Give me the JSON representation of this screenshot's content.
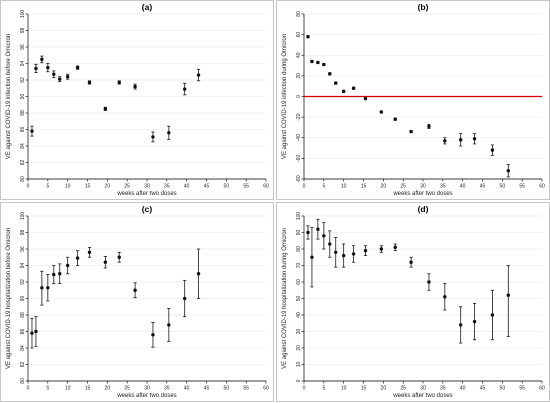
{
  "chart_data": [
    {
      "type": "scatter",
      "title": "(a)",
      "xlabel": "weeks after two doses",
      "ylabel": "VE against COVID-19 infection before Omicron",
      "xlim": [
        0,
        60
      ],
      "ylim": [
        80,
        100
      ],
      "xticks": [
        "0",
        "5",
        "10",
        "15",
        "20",
        "25",
        "30",
        "35",
        "40",
        "45",
        "50",
        "55",
        "60"
      ],
      "yticks": [
        "80",
        "82",
        "84",
        "86",
        "88",
        "90",
        "92",
        "94",
        "96",
        "98",
        "100"
      ],
      "grid": true,
      "series": [
        {
          "x": [
            1,
            2,
            3.5,
            5,
            6.5,
            8,
            10,
            12.5,
            15.5,
            19.5,
            23,
            27,
            31.5,
            35.5,
            39.5,
            43
          ],
          "y": [
            85.8,
            93.4,
            94.5,
            93.5,
            92.7,
            92.1,
            92.4,
            93.5,
            91.7,
            88.5,
            91.7,
            91.2,
            85.1,
            85.6,
            90.9,
            92.6
          ],
          "lower": [
            85.2,
            92.9,
            94.1,
            93.0,
            92.3,
            91.8,
            92.1,
            93.3,
            91.5,
            88.3,
            91.5,
            90.9,
            84.5,
            84.8,
            90.2,
            91.9
          ],
          "upper": [
            86.4,
            93.9,
            94.9,
            94.0,
            93.1,
            92.4,
            92.7,
            93.7,
            91.9,
            88.7,
            91.9,
            91.5,
            85.7,
            86.4,
            91.6,
            93.3
          ]
        }
      ]
    },
    {
      "type": "scatter",
      "title": "(b)",
      "xlabel": "weeks after two doses",
      "ylabel": "VE against COVID-19 infection during Omicron",
      "xlim": [
        0,
        60
      ],
      "ylim": [
        -80,
        80
      ],
      "xticks": [
        "0",
        "5",
        "10",
        "15",
        "20",
        "25",
        "30",
        "35",
        "40",
        "45",
        "50",
        "55",
        "60"
      ],
      "yticks": [
        "-80",
        "-60",
        "-40",
        "-20",
        "0",
        "20",
        "40",
        "60",
        "80"
      ],
      "reference_line": 0,
      "grid": true,
      "series": [
        {
          "x": [
            1,
            2,
            3.5,
            5,
            6.5,
            8,
            10,
            12.5,
            15.5,
            19.5,
            23,
            27,
            31.5,
            35.5,
            39.5,
            43,
            47.5,
            51.5
          ],
          "y": [
            58,
            34,
            33,
            31,
            22,
            13,
            5,
            8,
            -2,
            -15,
            -22,
            -34,
            -29,
            -43,
            -42,
            -41,
            -52,
            -72
          ],
          "lower": [
            57,
            33,
            32,
            30,
            21,
            12,
            4,
            7,
            -3,
            -16,
            -23,
            -35,
            -31,
            -46,
            -48,
            -46,
            -57,
            -78
          ],
          "upper": [
            59,
            35,
            34,
            32,
            23,
            14,
            6,
            9,
            -1,
            -14,
            -21,
            -33,
            -27,
            -40,
            -36,
            -36,
            -47,
            -66
          ]
        }
      ]
    },
    {
      "type": "scatter",
      "title": "(c)",
      "xlabel": "weeks after two doses",
      "ylabel": "VE against COVID-19 hospitalization before Omicron",
      "xlim": [
        0,
        60
      ],
      "ylim": [
        80,
        100
      ],
      "xticks": [
        "0",
        "5",
        "10",
        "15",
        "20",
        "25",
        "30",
        "35",
        "40",
        "45",
        "50",
        "55",
        "60"
      ],
      "yticks": [
        "80",
        "82",
        "84",
        "86",
        "88",
        "90",
        "92",
        "94",
        "96",
        "98",
        "100"
      ],
      "grid": true,
      "series": [
        {
          "x": [
            1,
            2,
            3.5,
            5,
            6.5,
            8,
            10,
            12.5,
            15.5,
            19.5,
            23,
            27,
            31.5,
            35.5,
            39.5,
            43
          ],
          "y": [
            85.8,
            86.0,
            91.3,
            91.3,
            92.9,
            93.0,
            94.0,
            94.9,
            95.6,
            94.4,
            95.0,
            91.0,
            85.6,
            86.8,
            90.0,
            93.0
          ],
          "lower": [
            84.0,
            84.2,
            89.2,
            89.7,
            91.8,
            91.8,
            93.0,
            94.0,
            95.0,
            93.7,
            94.4,
            90.1,
            84.1,
            84.8,
            87.8,
            90.0
          ],
          "upper": [
            87.6,
            87.8,
            93.3,
            92.9,
            94.0,
            94.2,
            95.0,
            95.8,
            96.2,
            95.1,
            95.6,
            91.9,
            87.1,
            88.8,
            92.2,
            96.0
          ]
        }
      ]
    },
    {
      "type": "scatter",
      "title": "(d)",
      "xlabel": "weeks after two doses",
      "ylabel": "VE against COVID-19 hospitalization during Omicron",
      "xlim": [
        0,
        60
      ],
      "ylim": [
        0,
        100
      ],
      "xticks": [
        "0",
        "5",
        "10",
        "15",
        "20",
        "25",
        "30",
        "35",
        "40",
        "45",
        "50",
        "55",
        "60"
      ],
      "yticks": [
        "0",
        "10",
        "20",
        "30",
        "40",
        "50",
        "60",
        "70",
        "80",
        "90",
        "100"
      ],
      "grid": true,
      "series": [
        {
          "x": [
            1,
            2,
            3.5,
            5,
            6.5,
            8,
            10,
            12.5,
            15.5,
            19.5,
            23,
            27,
            31.5,
            35.5,
            39.5,
            43,
            47.5,
            51.5
          ],
          "y": [
            90,
            75,
            92,
            88,
            83,
            78,
            76,
            77,
            79,
            80,
            81,
            72,
            60,
            51,
            34,
            36,
            40,
            52
          ],
          "lower": [
            86,
            57,
            86,
            80,
            75,
            69,
            69,
            72,
            76,
            78,
            79,
            69,
            55,
            43,
            23,
            25,
            25,
            27
          ],
          "upper": [
            94,
            93,
            98,
            96,
            91,
            87,
            83,
            82,
            82,
            82,
            83,
            75,
            65,
            59,
            45,
            47,
            55,
            70
          ]
        }
      ]
    }
  ]
}
